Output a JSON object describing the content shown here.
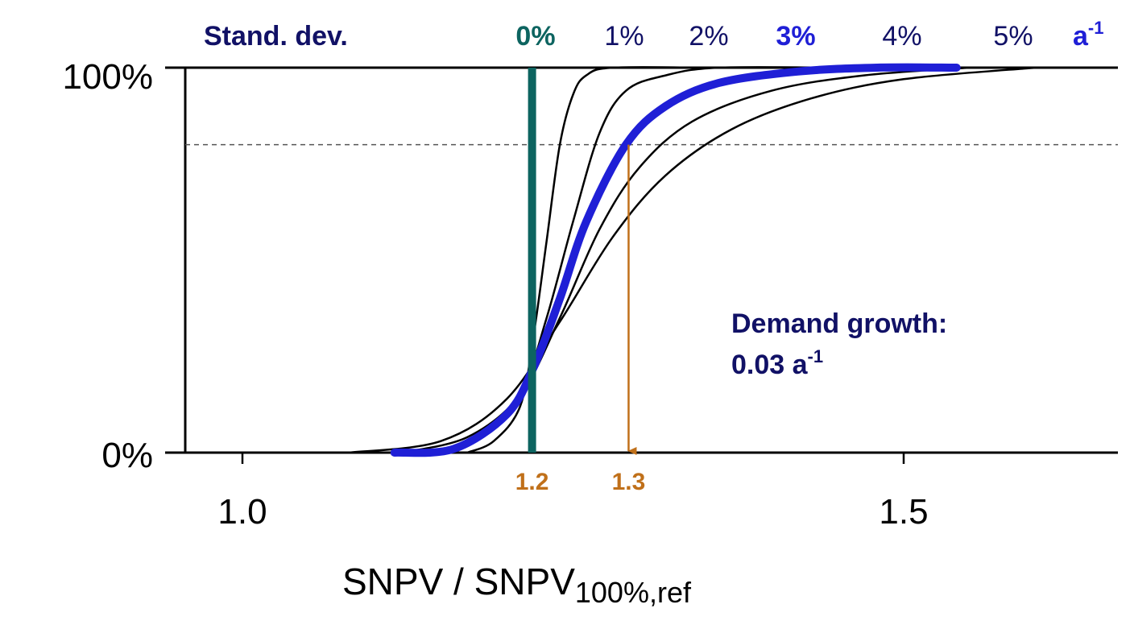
{
  "chart_data": {
    "type": "line",
    "title": "",
    "xlabel": "SNPV / SNPV",
    "xlabel_sub": "100%,ref",
    "ylabel": "",
    "xlim": [
      0.92,
      1.63
    ],
    "ylim": [
      0,
      1
    ],
    "x_ticks": [
      {
        "value": 1.0,
        "label": "1.0"
      },
      {
        "value": 1.5,
        "label": "1.5"
      }
    ],
    "y_ticks": [
      {
        "value": 0,
        "label": "0%"
      },
      {
        "value": 1,
        "label": "100%"
      }
    ],
    "reference_line_y": 0.8,
    "legend_title": "Stand. dev.",
    "legend_unit": {
      "base": "a",
      "sup": "-1"
    },
    "series": [
      {
        "name": "0%",
        "color": "#0d6460",
        "style": "vertical",
        "x": 1.219
      },
      {
        "name": "1%",
        "color": "#000000",
        "points": [
          [
            1.17,
            0
          ],
          [
            1.19,
            0.03
          ],
          [
            1.21,
            0.12
          ],
          [
            1.22,
            0.3
          ],
          [
            1.23,
            0.55
          ],
          [
            1.24,
            0.8
          ],
          [
            1.25,
            0.93
          ],
          [
            1.26,
            0.98
          ],
          [
            1.28,
            1.0
          ],
          [
            1.35,
            1.0
          ]
        ]
      },
      {
        "name": "2%",
        "color": "#000000",
        "points": [
          [
            1.15,
            0
          ],
          [
            1.18,
            0.05
          ],
          [
            1.21,
            0.15
          ],
          [
            1.23,
            0.35
          ],
          [
            1.25,
            0.6
          ],
          [
            1.27,
            0.83
          ],
          [
            1.29,
            0.94
          ],
          [
            1.32,
            0.98
          ],
          [
            1.36,
            1.0
          ],
          [
            1.45,
            1.0
          ]
        ]
      },
      {
        "name": "3%",
        "color": "#1f1fd6",
        "highlight": true,
        "points": [
          [
            1.115,
            0
          ],
          [
            1.16,
            0.01
          ],
          [
            1.2,
            0.1
          ],
          [
            1.22,
            0.22
          ],
          [
            1.24,
            0.4
          ],
          [
            1.26,
            0.6
          ],
          [
            1.29,
            0.8
          ],
          [
            1.32,
            0.9
          ],
          [
            1.36,
            0.96
          ],
          [
            1.42,
            0.99
          ],
          [
            1.48,
            1.0
          ],
          [
            1.54,
            1.0
          ]
        ]
      },
      {
        "name": "4%",
        "color": "#000000",
        "points": [
          [
            1.12,
            0
          ],
          [
            1.17,
            0.04
          ],
          [
            1.21,
            0.15
          ],
          [
            1.24,
            0.35
          ],
          [
            1.27,
            0.58
          ],
          [
            1.3,
            0.74
          ],
          [
            1.34,
            0.86
          ],
          [
            1.4,
            0.94
          ],
          [
            1.47,
            0.98
          ],
          [
            1.55,
            1.0
          ]
        ]
      },
      {
        "name": "5%",
        "color": "#000000",
        "points": [
          [
            1.08,
            0
          ],
          [
            1.15,
            0.03
          ],
          [
            1.2,
            0.14
          ],
          [
            1.24,
            0.34
          ],
          [
            1.28,
            0.56
          ],
          [
            1.32,
            0.72
          ],
          [
            1.37,
            0.84
          ],
          [
            1.43,
            0.92
          ],
          [
            1.5,
            0.97
          ],
          [
            1.6,
            1.0
          ]
        ]
      }
    ],
    "markers": [
      {
        "x": 1.219,
        "label": "1.2",
        "color": "#c0701a"
      },
      {
        "x": 1.292,
        "label": "1.3",
        "color": "#c0701a",
        "arrow_from_y": 0.8
      }
    ],
    "annotation": {
      "line1": "Demand growth:",
      "line2": "0.03 a",
      "line2_sup": "-1"
    }
  }
}
